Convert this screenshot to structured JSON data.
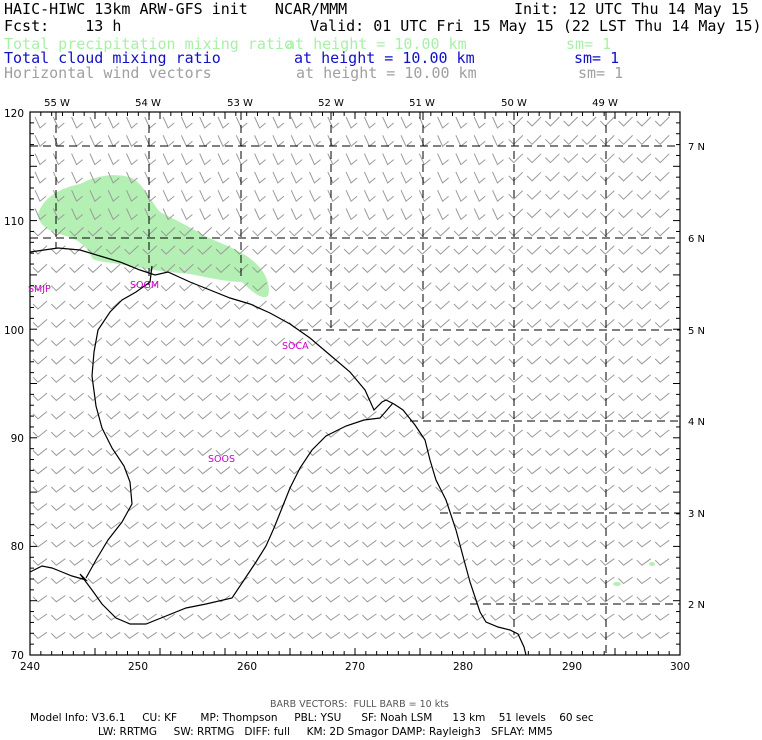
{
  "header": {
    "title": "HAIC-HIWC 13km ARW-GFS init   NCAR/MMM",
    "init": "Init: 12 UTC Thu 14 May 15",
    "fcst": "Fcst:    13 h",
    "valid": "Valid: 01 UTC Fri 15 May 15 (22 LST Thu 14 May 15)",
    "fields": [
      {
        "name": "Total precipitation mixing ratio",
        "height": "at height = 10.00 km",
        "sm": "sm= 1",
        "color": "#a8f0a8"
      },
      {
        "name": "Total cloud mixing ratio",
        "height": "at height = 10.00 km",
        "sm": "sm= 1",
        "color": "#1010c8"
      },
      {
        "name": "Horizontal wind vectors",
        "height": "at height = 10.00 km",
        "sm": "sm= 1",
        "color": "#a0a0a0"
      }
    ]
  },
  "map": {
    "lon_labels": [
      "55 W",
      "54 W",
      "53 W",
      "52 W",
      "51 W",
      "50 W",
      "49 W"
    ],
    "lat_labels": [
      "7 N",
      "6 N",
      "5 N",
      "4 N",
      "3 N",
      "2 N"
    ],
    "x_ticks": [
      "240",
      "250",
      "260",
      "270",
      "280",
      "290",
      "300"
    ],
    "y_ticks": [
      "70",
      "80",
      "90",
      "100",
      "110",
      "120"
    ],
    "stations": [
      "SMJP",
      "SOGM",
      "SOCA",
      "SOOS"
    ],
    "station_color": "#cc00cc",
    "precip_color": "#b4f0b4"
  },
  "footer": {
    "barb_note": "BARB VECTORS:  FULL BARB = 10 kts",
    "model_line1": "Model Info: V3.6.1     CU: KF       MP: Thompson     PBL: YSU      SF: Noah LSM      13 km    51 levels    60 sec",
    "model_line2": "LW: RRTMG     SW: RRTMG   DIFF: full     KM: 2D Smagor DAMP: Rayleigh3   SFLAY: MM5"
  }
}
